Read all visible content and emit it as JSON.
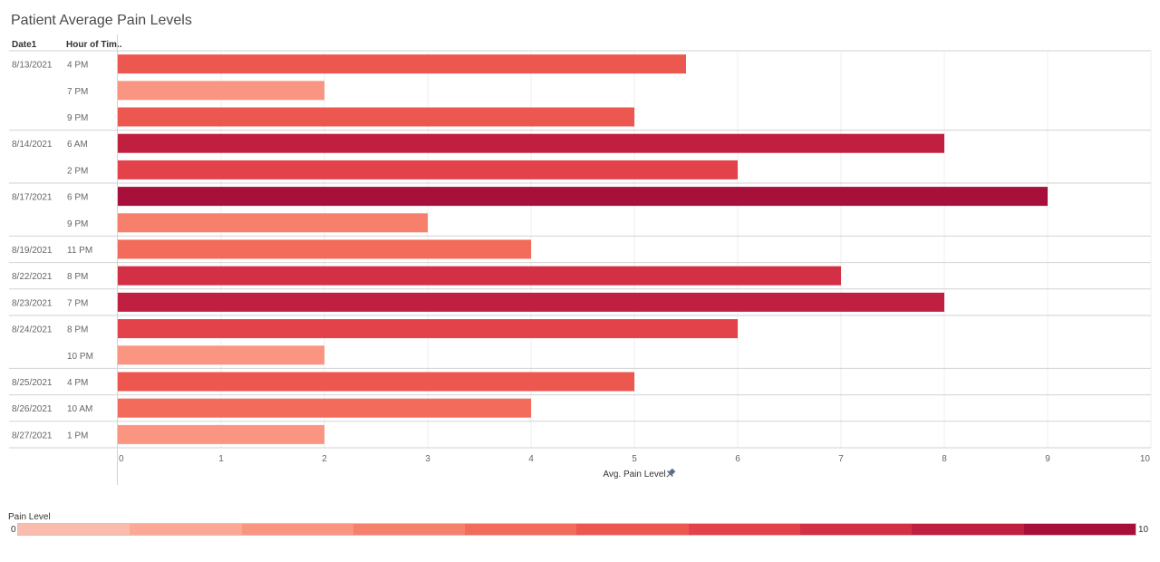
{
  "title": "Patient Average Pain Levels",
  "headers": {
    "date": "Date1",
    "hour": "Hour of Tim.."
  },
  "chart_data": {
    "type": "bar",
    "orientation": "horizontal",
    "title": "Patient Average Pain Levels",
    "xlabel": "Avg. Pain Level",
    "xlim": [
      0,
      10
    ],
    "xticks": [
      "0",
      "1",
      "2",
      "3",
      "4",
      "5",
      "6",
      "7",
      "8",
      "9",
      "10"
    ],
    "groups": [
      {
        "date": "8/13/2021",
        "rows": [
          {
            "hour": "4 PM",
            "value": 5.5
          },
          {
            "hour": "7 PM",
            "value": 2
          },
          {
            "hour": "9 PM",
            "value": 5
          }
        ]
      },
      {
        "date": "8/14/2021",
        "rows": [
          {
            "hour": "6 AM",
            "value": 8
          },
          {
            "hour": "2 PM",
            "value": 6
          }
        ]
      },
      {
        "date": "8/17/2021",
        "rows": [
          {
            "hour": "6 PM",
            "value": 9
          },
          {
            "hour": "9 PM",
            "value": 3
          }
        ]
      },
      {
        "date": "8/19/2021",
        "rows": [
          {
            "hour": "11 PM",
            "value": 4
          }
        ]
      },
      {
        "date": "8/22/2021",
        "rows": [
          {
            "hour": "8 PM",
            "value": 7
          }
        ]
      },
      {
        "date": "8/23/2021",
        "rows": [
          {
            "hour": "7 PM",
            "value": 8
          }
        ]
      },
      {
        "date": "8/24/2021",
        "rows": [
          {
            "hour": "8 PM",
            "value": 6
          },
          {
            "hour": "10 PM",
            "value": 2
          }
        ]
      },
      {
        "date": "8/25/2021",
        "rows": [
          {
            "hour": "4 PM",
            "value": 5
          }
        ]
      },
      {
        "date": "8/26/2021",
        "rows": [
          {
            "hour": "10 AM",
            "value": 4
          }
        ]
      },
      {
        "date": "8/27/2021",
        "rows": [
          {
            "hour": "1 PM",
            "value": 2
          }
        ]
      }
    ],
    "legend": {
      "title": "Pain Level",
      "min": "0",
      "max": "10",
      "colors": [
        "#fbbcad",
        "#fba996",
        "#fa9582",
        "#f7806d",
        "#f26b5b",
        "#ec5750",
        "#e3424a",
        "#d32f45",
        "#c01f40",
        "#a8103c"
      ]
    },
    "pin_icon": "pin-icon"
  }
}
